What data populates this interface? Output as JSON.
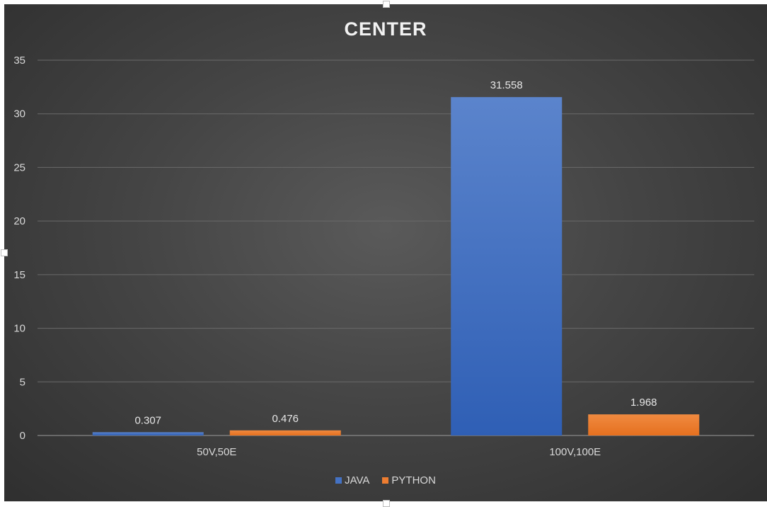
{
  "chart_data": {
    "type": "bar",
    "title": "CENTER",
    "categories": [
      "50V,50E",
      "100V,100E"
    ],
    "series": [
      {
        "name": "JAVA",
        "values": [
          0.307,
          31.558
        ],
        "color": "#4472c4"
      },
      {
        "name": "PYTHON",
        "values": [
          0.476,
          1.968
        ],
        "color": "#ed7d31"
      }
    ],
    "data_labels": {
      "JAVA": [
        "0.307",
        "31.558"
      ],
      "PYTHON": [
        "0.476",
        "1.968"
      ]
    },
    "ylim": [
      0,
      35
    ],
    "yticks": [
      "0",
      "5",
      "10",
      "15",
      "20",
      "25",
      "30",
      "35"
    ],
    "grid": true,
    "legend_position": "bottom",
    "xlabel": "",
    "ylabel": ""
  }
}
